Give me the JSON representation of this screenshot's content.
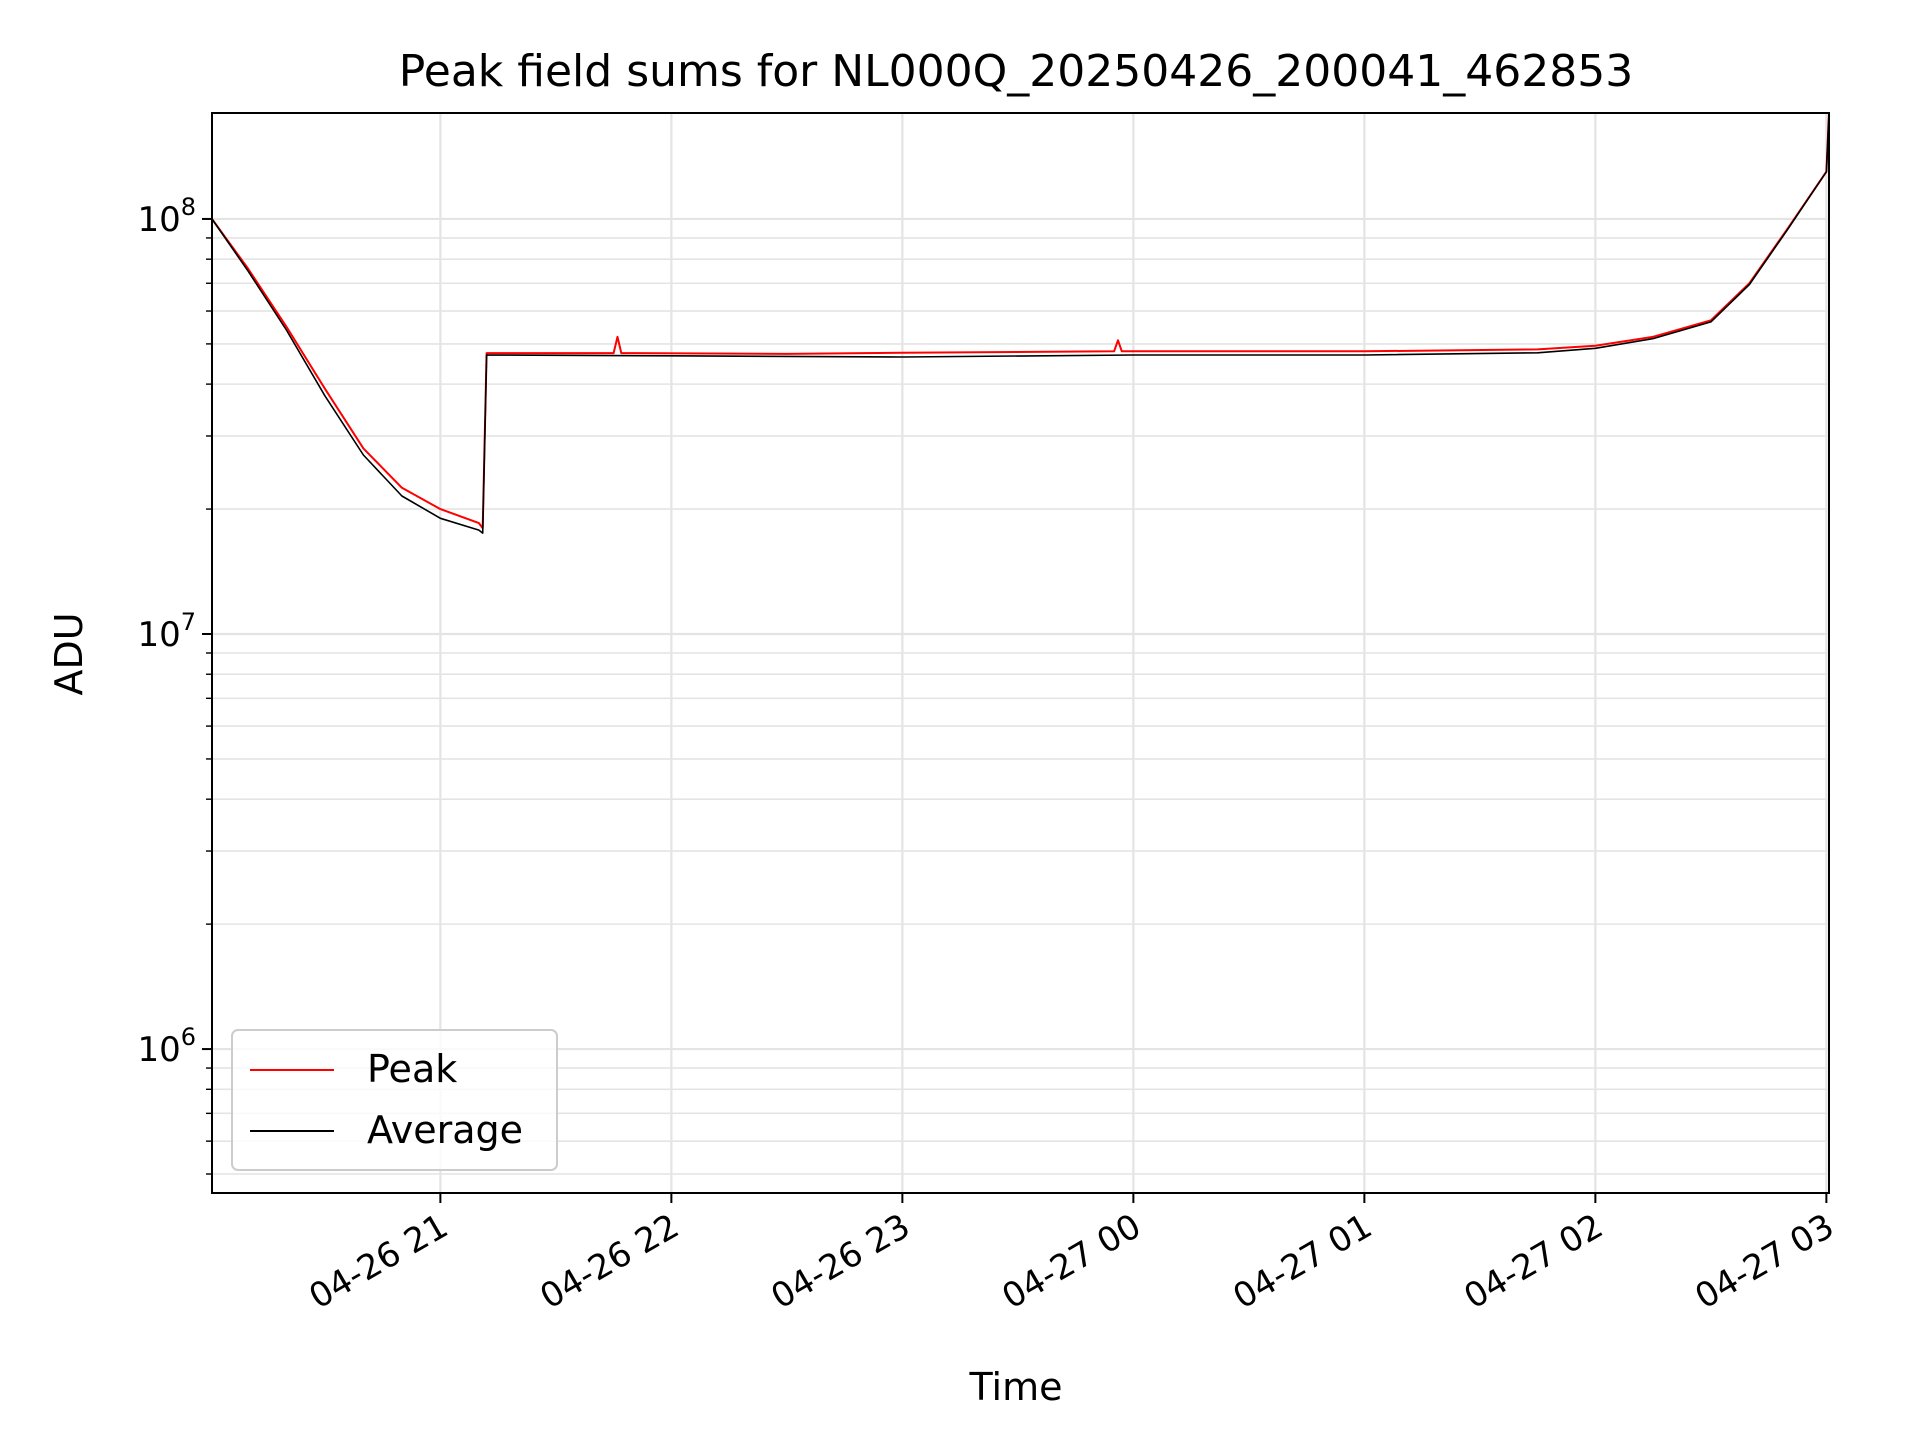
{
  "chart_data": {
    "type": "line",
    "title": "Peak field sums for NL000Q_20250426_200041_462853",
    "xlabel": "Time",
    "ylabel": "ADU",
    "xscale": "time",
    "yscale": "log",
    "grid": true,
    "legend_position": "lower-left",
    "xlim": [
      "2025-04-26 20:00:41",
      "2025-04-27 03:00:41"
    ],
    "ylim": [
      450000,
      180000000
    ],
    "x_ticks": [
      {
        "value": "2025-04-26 21:00",
        "label": "04-26 21"
      },
      {
        "value": "2025-04-26 22:00",
        "label": "04-26 22"
      },
      {
        "value": "2025-04-26 23:00",
        "label": "04-26 23"
      },
      {
        "value": "2025-04-27 00:00",
        "label": "04-27 00"
      },
      {
        "value": "2025-04-27 01:00",
        "label": "04-27 01"
      },
      {
        "value": "2025-04-27 02:00",
        "label": "04-27 02"
      },
      {
        "value": "2025-04-27 03:00",
        "label": "04-27 03"
      }
    ],
    "y_ticks": [
      {
        "value": 1000000,
        "base": "10",
        "exp": "6"
      },
      {
        "value": 10000000,
        "base": "10",
        "exp": "7"
      },
      {
        "value": 100000000,
        "base": "10",
        "exp": "8"
      }
    ],
    "series": [
      {
        "name": "Peak",
        "color": "#ff0000",
        "points": [
          [
            "2025-04-26 20:00:41",
            100000000
          ],
          [
            "2025-04-26 20:10",
            76000000
          ],
          [
            "2025-04-26 20:20",
            55000000
          ],
          [
            "2025-04-26 20:30",
            39000000
          ],
          [
            "2025-04-26 20:40",
            28000000
          ],
          [
            "2025-04-26 20:50",
            22500000
          ],
          [
            "2025-04-26 21:00",
            20000000
          ],
          [
            "2025-04-26 21:10",
            18500000
          ],
          [
            "2025-04-26 21:11",
            18000000
          ],
          [
            "2025-04-26 21:12",
            47500000
          ],
          [
            "2025-04-26 21:45",
            47500000
          ],
          [
            "2025-04-26 21:46",
            52000000
          ],
          [
            "2025-04-26 21:47",
            47500000
          ],
          [
            "2025-04-26 22:30",
            47300000
          ],
          [
            "2025-04-26 23:00",
            47600000
          ],
          [
            "2025-04-26 23:55",
            48000000
          ],
          [
            "2025-04-26 23:56",
            51000000
          ],
          [
            "2025-04-26 23:57",
            48000000
          ],
          [
            "2025-04-27 01:00",
            48000000
          ],
          [
            "2025-04-27 01:45",
            48500000
          ],
          [
            "2025-04-27 02:00",
            49500000
          ],
          [
            "2025-04-27 02:15",
            52000000
          ],
          [
            "2025-04-27 02:30",
            57000000
          ],
          [
            "2025-04-27 02:40",
            70000000
          ],
          [
            "2025-04-27 02:50",
            95000000
          ],
          [
            "2025-04-27 03:00",
            130000000
          ],
          [
            "2025-04-27 03:00:41",
            180000000
          ]
        ]
      },
      {
        "name": "Average",
        "color": "#000000",
        "points": [
          [
            "2025-04-26 20:00:41",
            100000000
          ],
          [
            "2025-04-26 20:10",
            75000000
          ],
          [
            "2025-04-26 20:20",
            54000000
          ],
          [
            "2025-04-26 20:30",
            37500000
          ],
          [
            "2025-04-26 20:40",
            27000000
          ],
          [
            "2025-04-26 20:50",
            21500000
          ],
          [
            "2025-04-26 21:00",
            19000000
          ],
          [
            "2025-04-26 21:10",
            17800000
          ],
          [
            "2025-04-26 21:11",
            17500000
          ],
          [
            "2025-04-26 21:12",
            47000000
          ],
          [
            "2025-04-26 22:00",
            46800000
          ],
          [
            "2025-04-26 23:00",
            46500000
          ],
          [
            "2025-04-27 00:00",
            47000000
          ],
          [
            "2025-04-27 01:00",
            47000000
          ],
          [
            "2025-04-27 01:45",
            47600000
          ],
          [
            "2025-04-27 02:00",
            48800000
          ],
          [
            "2025-04-27 02:15",
            51500000
          ],
          [
            "2025-04-27 02:30",
            56500000
          ],
          [
            "2025-04-27 02:40",
            69500000
          ],
          [
            "2025-04-27 02:50",
            94500000
          ],
          [
            "2025-04-27 03:00",
            130000000
          ],
          [
            "2025-04-27 03:00:41",
            180000000
          ]
        ]
      }
    ]
  }
}
